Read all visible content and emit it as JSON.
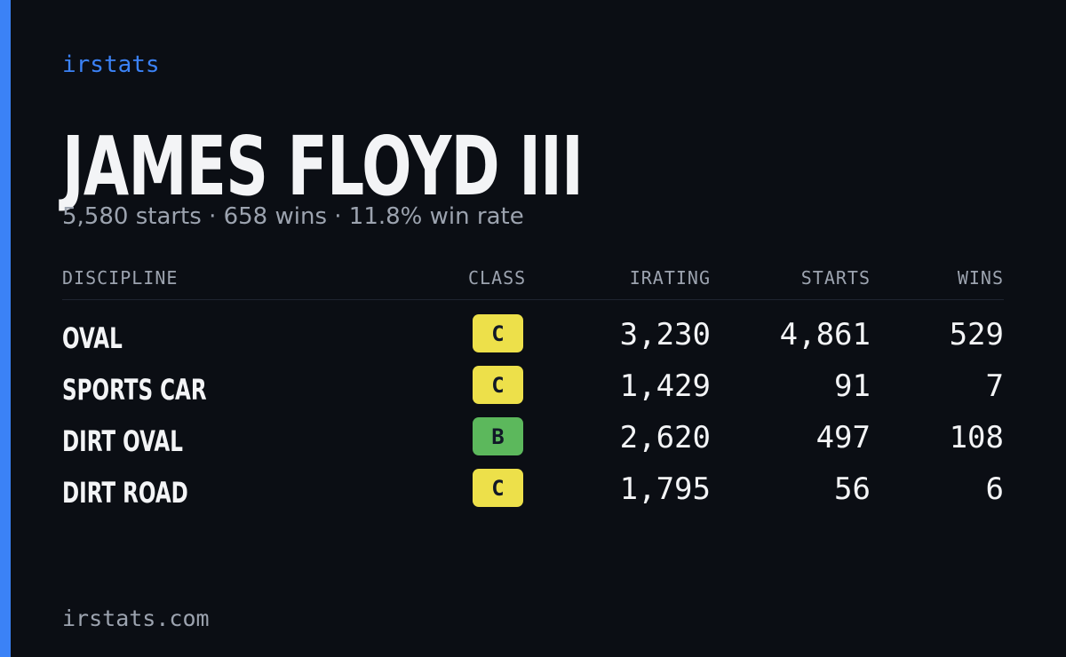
{
  "brand": "irstats",
  "driver": {
    "name": "JAMES FLOYD III",
    "summary": "5,580 starts · 658 wins · 11.8% win rate"
  },
  "table": {
    "headers": [
      "DISCIPLINE",
      "CLASS",
      "IRATING",
      "STARTS",
      "WINS"
    ],
    "rows": [
      {
        "discipline": "OVAL",
        "class": "C",
        "class_color": "#ede04a",
        "irating": "3,230",
        "starts": "4,861",
        "wins": "529"
      },
      {
        "discipline": "SPORTS CAR",
        "class": "C",
        "class_color": "#ede04a",
        "irating": "1,429",
        "starts": "91",
        "wins": "7"
      },
      {
        "discipline": "DIRT OVAL",
        "class": "B",
        "class_color": "#5cb85c",
        "irating": "2,620",
        "starts": "497",
        "wins": "108"
      },
      {
        "discipline": "DIRT ROAD",
        "class": "C",
        "class_color": "#ede04a",
        "irating": "1,795",
        "starts": "56",
        "wins": "6"
      }
    ]
  },
  "footer": "irstats.com"
}
